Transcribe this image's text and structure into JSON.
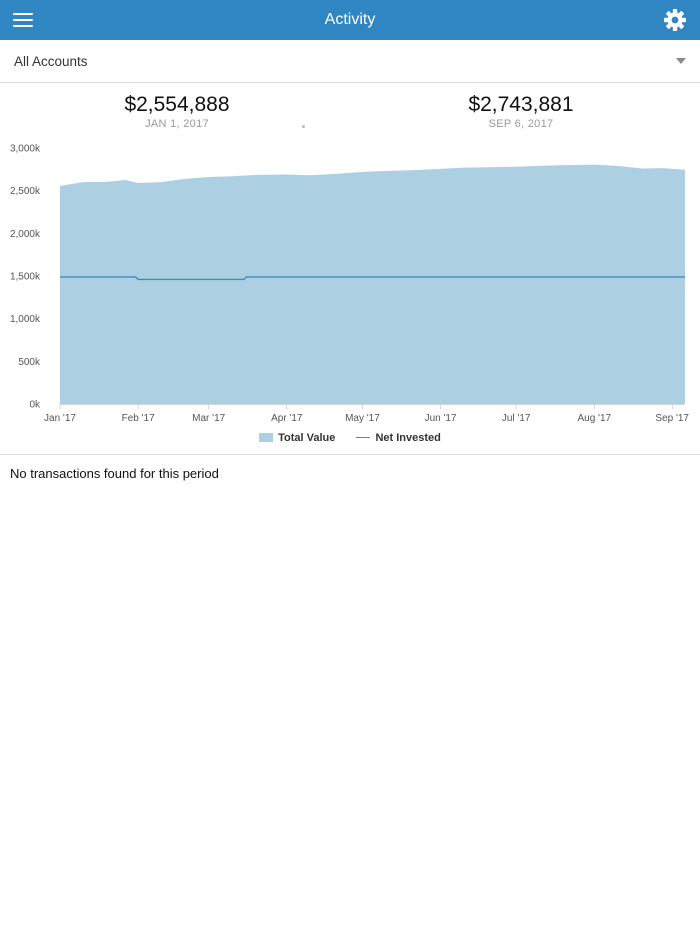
{
  "header": {
    "title": "Activity",
    "menu_icon": "hamburger-menu-icon",
    "settings_icon": "gear-icon",
    "bar_color": "#2f86c2"
  },
  "account_selector": {
    "selected": "All Accounts",
    "icon": "caret-down-icon"
  },
  "summary": {
    "start": {
      "amount": "$2,554,888",
      "date": "JAN 1, 2017"
    },
    "end": {
      "amount": "$2,743,881",
      "date": "SEP 6, 2017"
    }
  },
  "chart_data": {
    "type": "area",
    "x_axis_range": [
      "2017-01-01",
      "2017-09-06"
    ],
    "x_ticks": [
      "Jan '17",
      "Feb '17",
      "Mar '17",
      "Apr '17",
      "May '17",
      "Jun '17",
      "Jul '17",
      "Aug '17",
      "Sep '17"
    ],
    "y_ticks": [
      "0k",
      "500k",
      "1,000k",
      "1,500k",
      "2,000k",
      "2,500k",
      "3,000k"
    ],
    "ylim": [
      0,
      3000
    ],
    "y_unit": "k",
    "grid": false,
    "legend_position": "bottom",
    "series": [
      {
        "name": "Total Value",
        "style": "area",
        "color": "#acd0e2",
        "points": [
          [
            "2017-01-01",
            2555
          ],
          [
            "2017-01-10",
            2600
          ],
          [
            "2017-01-20",
            2605
          ],
          [
            "2017-01-27",
            2625
          ],
          [
            "2017-02-01",
            2590
          ],
          [
            "2017-02-10",
            2600
          ],
          [
            "2017-02-20",
            2640
          ],
          [
            "2017-03-01",
            2660
          ],
          [
            "2017-03-10",
            2670
          ],
          [
            "2017-03-20",
            2685
          ],
          [
            "2017-04-01",
            2690
          ],
          [
            "2017-04-10",
            2680
          ],
          [
            "2017-04-20",
            2695
          ],
          [
            "2017-05-01",
            2720
          ],
          [
            "2017-05-10",
            2730
          ],
          [
            "2017-05-20",
            2740
          ],
          [
            "2017-06-01",
            2755
          ],
          [
            "2017-06-10",
            2770
          ],
          [
            "2017-06-20",
            2775
          ],
          [
            "2017-07-01",
            2780
          ],
          [
            "2017-07-10",
            2790
          ],
          [
            "2017-07-20",
            2800
          ],
          [
            "2017-08-01",
            2805
          ],
          [
            "2017-08-10",
            2790
          ],
          [
            "2017-08-20",
            2760
          ],
          [
            "2017-08-28",
            2765
          ],
          [
            "2017-09-06",
            2744
          ]
        ]
      },
      {
        "name": "Net Invested",
        "style": "line",
        "color": "#3c8cc4",
        "points": [
          [
            "2017-01-01",
            1490
          ],
          [
            "2017-01-31",
            1490
          ],
          [
            "2017-02-01",
            1460
          ],
          [
            "2017-03-15",
            1460
          ],
          [
            "2017-03-16",
            1490
          ],
          [
            "2017-09-06",
            1490
          ]
        ]
      }
    ]
  },
  "legend": {
    "total_value": "Total Value",
    "net_invested": "Net Invested"
  },
  "transactions": {
    "empty_message": "No transactions found for this period"
  }
}
